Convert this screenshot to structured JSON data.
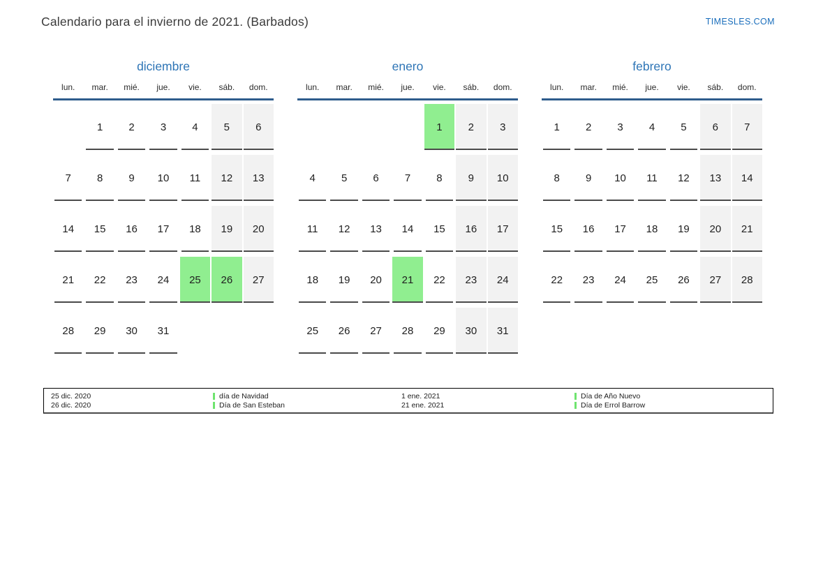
{
  "header": {
    "title": "Calendario para el invierno de 2021. (Barbados)",
    "brand": "TIMESLES.COM"
  },
  "colors": {
    "accent_blue": "#2e75b6",
    "brand_blue": "#1a6ebc",
    "header_rule": "#2e5c8c",
    "cell_line": "#4a4a4a",
    "weekend_bg": "#f2f2f2",
    "holiday_bg": "#90ee90",
    "legend_marker": "#6fe46f"
  },
  "weekday_labels": [
    "lun.",
    "mar.",
    "mié.",
    "jue.",
    "vie.",
    "sáb.",
    "dom."
  ],
  "calendars": [
    {
      "name": "diciembre",
      "weeks": [
        [
          {
            "d": null,
            "t": "empty"
          },
          {
            "d": 1,
            "t": "plain"
          },
          {
            "d": 2,
            "t": "plain"
          },
          {
            "d": 3,
            "t": "plain"
          },
          {
            "d": 4,
            "t": "plain"
          },
          {
            "d": 5,
            "t": "weekend"
          },
          {
            "d": 6,
            "t": "weekend"
          }
        ],
        [
          {
            "d": 7,
            "t": "plain"
          },
          {
            "d": 8,
            "t": "plain"
          },
          {
            "d": 9,
            "t": "plain"
          },
          {
            "d": 10,
            "t": "plain"
          },
          {
            "d": 11,
            "t": "plain"
          },
          {
            "d": 12,
            "t": "weekend"
          },
          {
            "d": 13,
            "t": "weekend"
          }
        ],
        [
          {
            "d": 14,
            "t": "plain"
          },
          {
            "d": 15,
            "t": "plain"
          },
          {
            "d": 16,
            "t": "plain"
          },
          {
            "d": 17,
            "t": "plain"
          },
          {
            "d": 18,
            "t": "plain"
          },
          {
            "d": 19,
            "t": "weekend"
          },
          {
            "d": 20,
            "t": "weekend"
          }
        ],
        [
          {
            "d": 21,
            "t": "plain"
          },
          {
            "d": 22,
            "t": "plain"
          },
          {
            "d": 23,
            "t": "plain"
          },
          {
            "d": 24,
            "t": "plain"
          },
          {
            "d": 25,
            "t": "holiday"
          },
          {
            "d": 26,
            "t": "holiday"
          },
          {
            "d": 27,
            "t": "weekend"
          }
        ],
        [
          {
            "d": 28,
            "t": "plain"
          },
          {
            "d": 29,
            "t": "plain"
          },
          {
            "d": 30,
            "t": "plain"
          },
          {
            "d": 31,
            "t": "plain"
          },
          {
            "d": null,
            "t": "empty"
          },
          {
            "d": null,
            "t": "empty"
          },
          {
            "d": null,
            "t": "empty"
          }
        ]
      ]
    },
    {
      "name": "enero",
      "weeks": [
        [
          {
            "d": null,
            "t": "empty"
          },
          {
            "d": null,
            "t": "empty"
          },
          {
            "d": null,
            "t": "empty"
          },
          {
            "d": null,
            "t": "empty"
          },
          {
            "d": 1,
            "t": "holiday"
          },
          {
            "d": 2,
            "t": "weekend"
          },
          {
            "d": 3,
            "t": "weekend"
          }
        ],
        [
          {
            "d": 4,
            "t": "plain"
          },
          {
            "d": 5,
            "t": "plain"
          },
          {
            "d": 6,
            "t": "plain"
          },
          {
            "d": 7,
            "t": "plain"
          },
          {
            "d": 8,
            "t": "plain"
          },
          {
            "d": 9,
            "t": "weekend"
          },
          {
            "d": 10,
            "t": "weekend"
          }
        ],
        [
          {
            "d": 11,
            "t": "plain"
          },
          {
            "d": 12,
            "t": "plain"
          },
          {
            "d": 13,
            "t": "plain"
          },
          {
            "d": 14,
            "t": "plain"
          },
          {
            "d": 15,
            "t": "plain"
          },
          {
            "d": 16,
            "t": "weekend"
          },
          {
            "d": 17,
            "t": "weekend"
          }
        ],
        [
          {
            "d": 18,
            "t": "plain"
          },
          {
            "d": 19,
            "t": "plain"
          },
          {
            "d": 20,
            "t": "plain"
          },
          {
            "d": 21,
            "t": "holiday"
          },
          {
            "d": 22,
            "t": "plain"
          },
          {
            "d": 23,
            "t": "weekend"
          },
          {
            "d": 24,
            "t": "weekend"
          }
        ],
        [
          {
            "d": 25,
            "t": "plain"
          },
          {
            "d": 26,
            "t": "plain"
          },
          {
            "d": 27,
            "t": "plain"
          },
          {
            "d": 28,
            "t": "plain"
          },
          {
            "d": 29,
            "t": "plain"
          },
          {
            "d": 30,
            "t": "weekend"
          },
          {
            "d": 31,
            "t": "weekend"
          }
        ]
      ]
    },
    {
      "name": "febrero",
      "weeks": [
        [
          {
            "d": 1,
            "t": "plain"
          },
          {
            "d": 2,
            "t": "plain"
          },
          {
            "d": 3,
            "t": "plain"
          },
          {
            "d": 4,
            "t": "plain"
          },
          {
            "d": 5,
            "t": "plain"
          },
          {
            "d": 6,
            "t": "weekend"
          },
          {
            "d": 7,
            "t": "weekend"
          }
        ],
        [
          {
            "d": 8,
            "t": "plain"
          },
          {
            "d": 9,
            "t": "plain"
          },
          {
            "d": 10,
            "t": "plain"
          },
          {
            "d": 11,
            "t": "plain"
          },
          {
            "d": 12,
            "t": "plain"
          },
          {
            "d": 13,
            "t": "weekend"
          },
          {
            "d": 14,
            "t": "weekend"
          }
        ],
        [
          {
            "d": 15,
            "t": "plain"
          },
          {
            "d": 16,
            "t": "plain"
          },
          {
            "d": 17,
            "t": "plain"
          },
          {
            "d": 18,
            "t": "plain"
          },
          {
            "d": 19,
            "t": "plain"
          },
          {
            "d": 20,
            "t": "weekend"
          },
          {
            "d": 21,
            "t": "weekend"
          }
        ],
        [
          {
            "d": 22,
            "t": "plain"
          },
          {
            "d": 23,
            "t": "plain"
          },
          {
            "d": 24,
            "t": "plain"
          },
          {
            "d": 25,
            "t": "plain"
          },
          {
            "d": 26,
            "t": "plain"
          },
          {
            "d": 27,
            "t": "weekend"
          },
          {
            "d": 28,
            "t": "weekend"
          }
        ]
      ]
    }
  ],
  "legend": {
    "groups": [
      {
        "entries": [
          {
            "date": "25 dic. 2020",
            "label": "día de Navidad"
          },
          {
            "date": "26 dic. 2020",
            "label": "Día de San Esteban"
          }
        ]
      },
      {
        "entries": [
          {
            "date": "1 ene. 2021",
            "label": "Día de Año Nuevo"
          },
          {
            "date": "21 ene. 2021",
            "label": "Día de Errol Barrow"
          }
        ]
      }
    ]
  }
}
